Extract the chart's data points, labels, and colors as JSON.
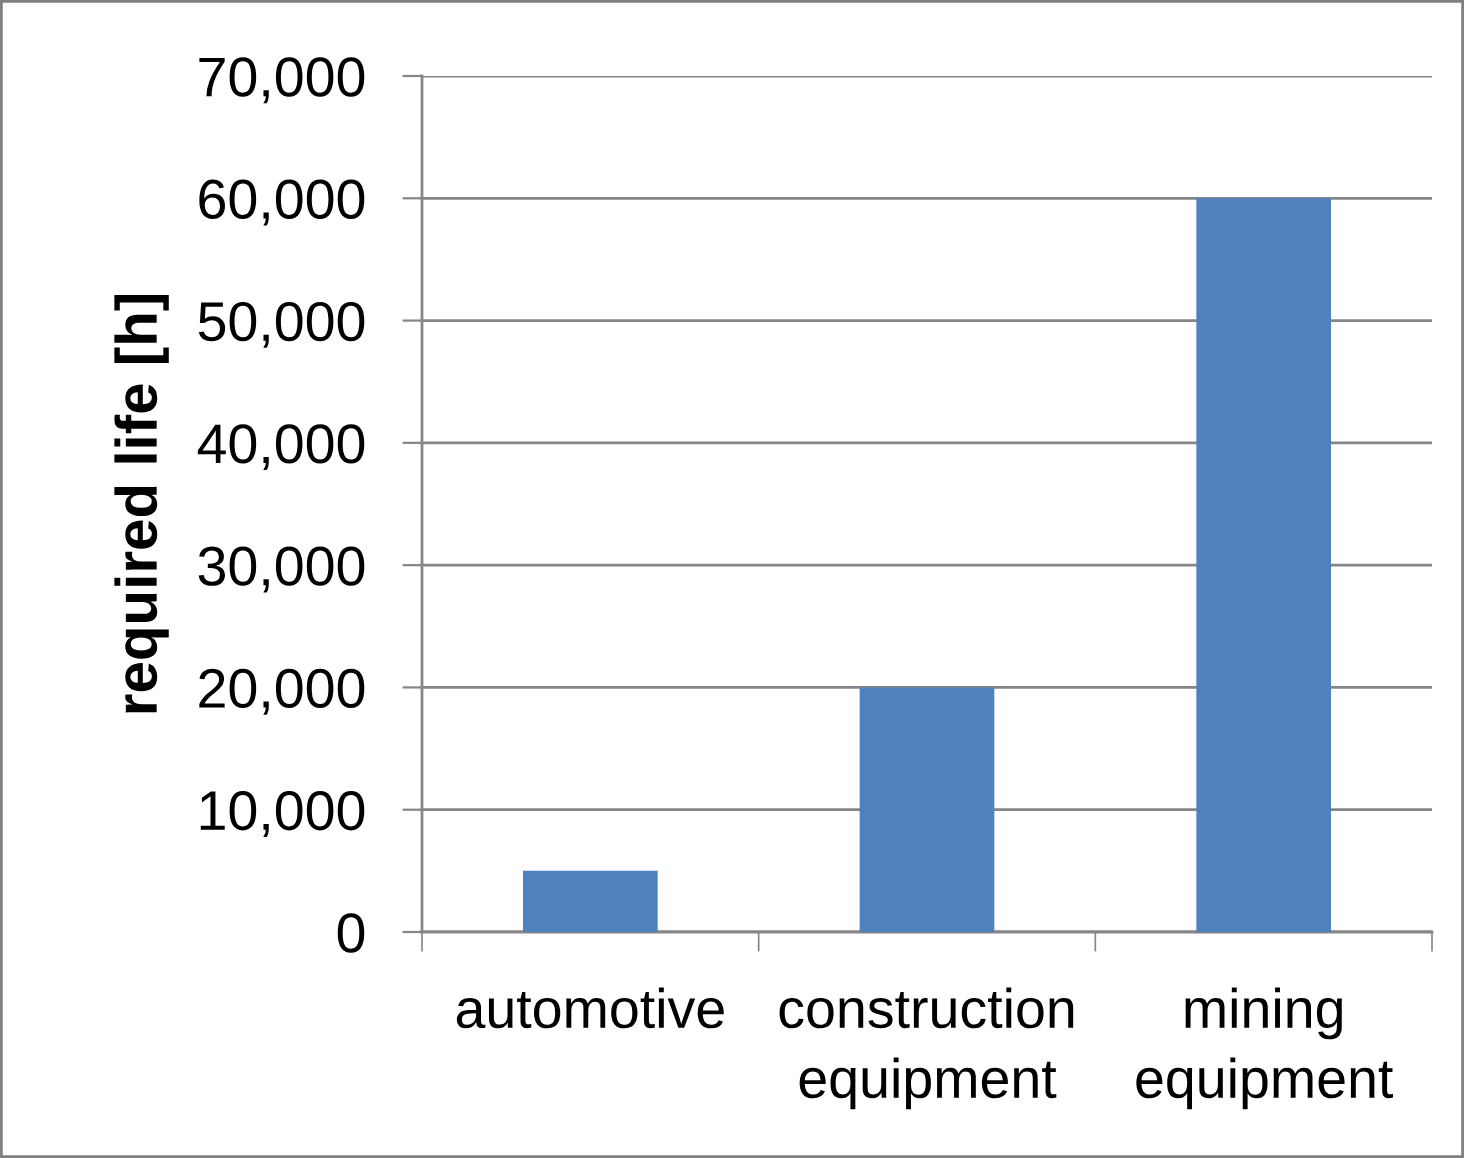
{
  "chart_data": {
    "type": "bar",
    "ylabel": "required life [h]",
    "categories": [
      "automotive",
      "construction\nequipment",
      "mining\nequipment"
    ],
    "values": [
      5000,
      20000,
      60000
    ],
    "color": "#4f81bd",
    "ylim": [
      0,
      70000
    ],
    "yticks": [
      {
        "value": 0,
        "label": "0"
      },
      {
        "value": 10000,
        "label": "10,000"
      },
      {
        "value": 20000,
        "label": "20,000"
      },
      {
        "value": 30000,
        "label": "30,000"
      },
      {
        "value": 40000,
        "label": "40,000"
      },
      {
        "value": 50000,
        "label": "50,000"
      },
      {
        "value": 60000,
        "label": "60,000"
      },
      {
        "value": 70000,
        "label": "70,000"
      }
    ],
    "grid": "y",
    "legend": false
  }
}
